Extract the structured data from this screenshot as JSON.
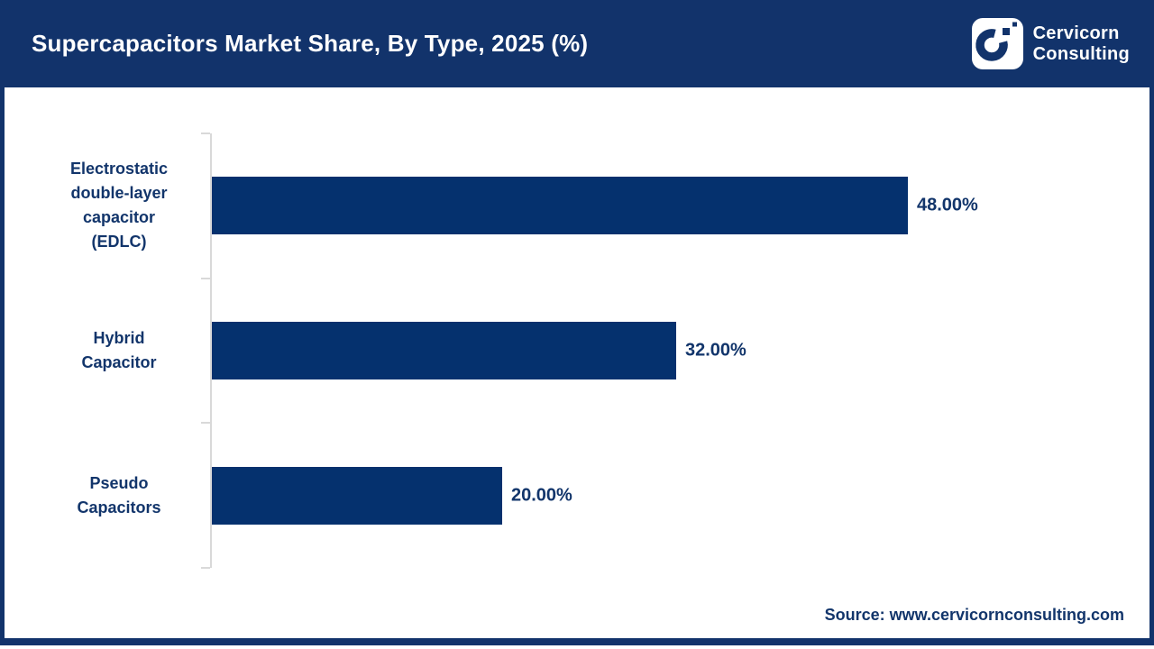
{
  "header": {
    "title": "Supercapacitors Market Share, By Type, 2025 (%)",
    "logo": {
      "icon": "cervicorn-c-mark",
      "line1": "Cervicorn",
      "line2": "Consulting"
    }
  },
  "chart_data": {
    "type": "bar",
    "orientation": "horizontal",
    "title": "Supercapacitors Market Share, By Type, 2025 (%)",
    "categories": [
      "Electrostatic double-layer capacitor (EDLC)",
      "Hybrid Capacitor",
      "Pseudo Capacitors"
    ],
    "category_lines": [
      [
        "Electrostatic",
        "double-layer",
        "capacitor",
        "(EDLC)"
      ],
      [
        "Hybrid",
        "Capacitor"
      ],
      [
        "Pseudo",
        "Capacitors"
      ]
    ],
    "values": [
      48,
      32,
      20
    ],
    "value_labels": [
      "48.00%",
      "32.00%",
      "20.00%"
    ],
    "unit": "%",
    "xlabel": "",
    "ylabel": "",
    "legend": false,
    "grid": false,
    "axis": "single vertical category axis with ticks at band boundaries"
  },
  "footer": {
    "source": "Source: www.cervicornconsulting.com"
  },
  "colors": {
    "navy": "#12336B",
    "bar": "#05316E",
    "text": "#12356B",
    "axis": "#D9D9D9",
    "background": "#FFFFFF"
  }
}
